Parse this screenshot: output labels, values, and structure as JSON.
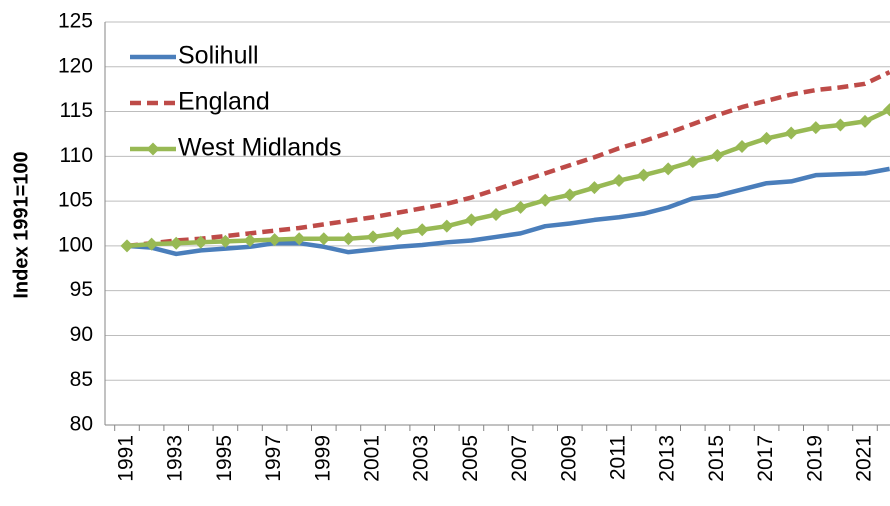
{
  "chart_data": {
    "type": "line",
    "y_label": "Index 1991=100",
    "categories": [
      "1991",
      null,
      "1993",
      null,
      "1995",
      null,
      "1997",
      null,
      "1999",
      null,
      "2001",
      null,
      "2003",
      null,
      "2005",
      null,
      "2007",
      null,
      "2009",
      null,
      "2011",
      null,
      "2013",
      null,
      "2015",
      null,
      "2017",
      null,
      "2019",
      null,
      "2021",
      null
    ],
    "series": [
      {
        "name": "Solihull",
        "color": "#4a7ebb",
        "style": "solid",
        "marker": "none",
        "values": [
          100,
          99.8,
          99.1,
          99.5,
          99.7,
          99.9,
          100.3,
          100.3,
          99.9,
          99.3,
          99.6,
          99.9,
          100.1,
          100.4,
          100.6,
          101.0,
          101.4,
          102.2,
          102.5,
          102.9,
          103.2,
          103.6,
          104.3,
          105.3,
          105.6,
          106.3,
          107.0,
          107.2,
          107.9,
          108.0,
          108.1,
          108.6
        ]
      },
      {
        "name": "England",
        "color": "#be4b48",
        "style": "dashed",
        "marker": "none",
        "values": [
          100,
          100.3,
          100.6,
          100.8,
          101.1,
          101.4,
          101.7,
          102.0,
          102.4,
          102.8,
          103.2,
          103.7,
          104.2,
          104.7,
          105.4,
          106.3,
          107.2,
          108.1,
          109.0,
          109.9,
          110.9,
          111.7,
          112.6,
          113.6,
          114.6,
          115.5,
          116.2,
          116.9,
          117.4,
          117.7,
          118.1,
          119.4
        ]
      },
      {
        "name": "West Midlands",
        "color": "#98b954",
        "style": "solid",
        "marker": "diamond",
        "values": [
          100,
          100.2,
          100.3,
          100.4,
          100.5,
          100.6,
          100.7,
          100.8,
          100.8,
          100.8,
          101.0,
          101.4,
          101.8,
          102.2,
          102.9,
          103.5,
          104.3,
          105.1,
          105.7,
          106.5,
          107.3,
          107.9,
          108.6,
          109.4,
          110.1,
          111.1,
          112.0,
          112.6,
          113.2,
          113.5,
          113.9,
          115.2
        ]
      }
    ],
    "ylim": [
      80,
      125
    ],
    "yticks": [
      80,
      85,
      90,
      95,
      100,
      105,
      110,
      115,
      120,
      125
    ],
    "grid": true,
    "legend": "upper left"
  }
}
